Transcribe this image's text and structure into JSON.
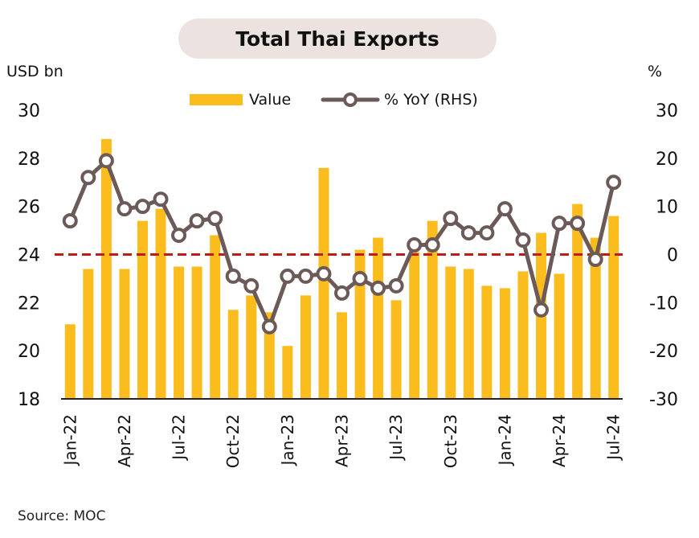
{
  "title": "Total Thai Exports",
  "left_unit": "USD bn",
  "right_unit": "%",
  "source": "Source:  MOC",
  "colors": {
    "bar": "#FBBC1E",
    "line": "#6B5A58",
    "marker_fill": "#ffffff",
    "zero_line": "#C01B17",
    "title_bg": "#ECE3E0"
  },
  "chart_data": {
    "type": "bar",
    "categories": [
      "Jan-22",
      "Feb-22",
      "Mar-22",
      "Apr-22",
      "May-22",
      "Jun-22",
      "Jul-22",
      "Aug-22",
      "Sep-22",
      "Oct-22",
      "Nov-22",
      "Dec-22",
      "Jan-23",
      "Feb-23",
      "Mar-23",
      "Apr-23",
      "May-23",
      "Jun-23",
      "Jul-23",
      "Aug-23",
      "Sep-23",
      "Oct-23",
      "Nov-23",
      "Dec-23",
      "Jan-24",
      "Feb-24",
      "Mar-24",
      "Apr-24",
      "May-24",
      "Jun-24",
      "Jul-24"
    ],
    "x_tick_labels": [
      "Jan-22",
      "Apr-22",
      "Jul-22",
      "Oct-22",
      "Jan-23",
      "Apr-23",
      "Jul-23",
      "Oct-23",
      "Jan-24",
      "Apr-24",
      "Jul-24"
    ],
    "series": [
      {
        "name": "Value",
        "axis": "left",
        "type": "bar",
        "values": [
          21.1,
          23.4,
          28.8,
          23.4,
          25.4,
          25.9,
          23.5,
          23.5,
          24.8,
          21.7,
          22.3,
          21.6,
          20.2,
          22.3,
          27.6,
          21.6,
          24.2,
          24.7,
          22.1,
          24.1,
          25.4,
          23.5,
          23.4,
          22.7,
          22.6,
          23.3,
          24.9,
          23.2,
          26.1,
          24.7,
          25.6
        ]
      },
      {
        "name": "% YoY (RHS)",
        "axis": "right",
        "type": "line",
        "values": [
          7.0,
          16.0,
          19.5,
          9.5,
          10.0,
          11.5,
          4.0,
          7.0,
          7.5,
          -4.5,
          -6.5,
          -15.0,
          -4.5,
          -4.5,
          -4.0,
          -8.0,
          -5.0,
          -7.0,
          -6.5,
          2.0,
          2.0,
          7.5,
          4.5,
          4.5,
          9.5,
          3.0,
          -11.5,
          6.5,
          6.5,
          -1.0,
          15.0
        ]
      }
    ],
    "left_axis": {
      "min": 18,
      "max": 30,
      "ticks": [
        18,
        20,
        22,
        24,
        26,
        28,
        30
      ]
    },
    "right_axis": {
      "min": -30,
      "max": 30,
      "ticks": [
        -30,
        -20,
        -10,
        0,
        10,
        20,
        30
      ]
    },
    "reference_line": {
      "axis": "right",
      "value": 0,
      "style": "dashed"
    },
    "legend": {
      "position": "top",
      "entries": [
        "Value",
        "% YoY (RHS)"
      ]
    }
  }
}
